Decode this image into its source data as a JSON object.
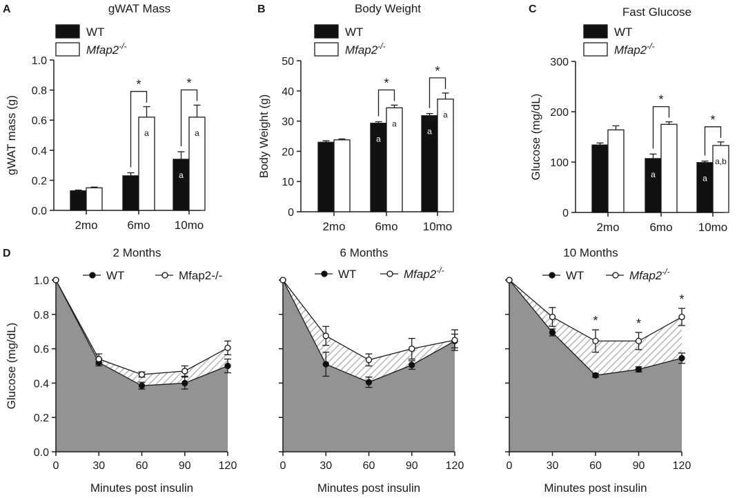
{
  "chart_data": [
    {
      "panel": "A",
      "type": "bar",
      "title": "gWAT Mass",
      "ylabel": "gWAT mass (g)",
      "xlabel": "",
      "ylim": [
        0,
        1.0
      ],
      "yticks": [
        "0.0",
        "0.2",
        "0.4",
        "0.6",
        "0.8",
        "1.0"
      ],
      "categories": [
        "2mo",
        "6mo",
        "10mo"
      ],
      "legend": [
        {
          "label": "WT",
          "style": "normal"
        },
        {
          "label": "Mfap2",
          "sup": "-/-",
          "style": "italic"
        }
      ],
      "series": [
        {
          "name": "WT",
          "values": [
            0.13,
            0.23,
            0.34
          ],
          "errors": [
            0.005,
            0.02,
            0.05
          ],
          "labels": [
            "",
            "",
            "a"
          ]
        },
        {
          "name": "Mfap2-/-",
          "values": [
            0.15,
            0.62,
            0.62
          ],
          "errors": [
            0.005,
            0.07,
            0.08
          ],
          "labels": [
            "",
            "a",
            "a"
          ]
        }
      ],
      "significance": [
        {
          "category": 1,
          "text": "*"
        },
        {
          "category": 2,
          "text": "*"
        }
      ]
    },
    {
      "panel": "B",
      "type": "bar",
      "title": "Body Weight",
      "ylabel": "Body Weight (g)",
      "xlabel": "",
      "ylim": [
        0,
        50
      ],
      "yticks": [
        "0",
        "10",
        "20",
        "30",
        "40",
        "50"
      ],
      "categories": [
        "2mo",
        "6mo",
        "10mo"
      ],
      "legend": [
        {
          "label": "WT",
          "style": "normal"
        },
        {
          "label": "Mfap2",
          "sup": "-/-",
          "style": "italic"
        }
      ],
      "series": [
        {
          "name": "WT",
          "values": [
            23,
            29.3,
            31.8
          ],
          "errors": [
            0.5,
            0.5,
            0.7
          ],
          "labels": [
            "",
            "a",
            "a"
          ]
        },
        {
          "name": "Mfap2-/-",
          "values": [
            23.8,
            34.4,
            37.3
          ],
          "errors": [
            0.3,
            0.9,
            2.0
          ],
          "labels": [
            "",
            "a",
            "a"
          ]
        }
      ],
      "significance": [
        {
          "category": 1,
          "text": "*"
        },
        {
          "category": 2,
          "text": "*"
        }
      ]
    },
    {
      "panel": "C",
      "type": "bar",
      "title": "Fast Glucose",
      "ylabel": "Glucose (mg/dL)",
      "xlabel": "",
      "ylim": [
        0,
        300
      ],
      "yticks": [
        "0",
        "100",
        "200",
        "300"
      ],
      "categories": [
        "2mo",
        "6mo",
        "10mo"
      ],
      "legend": [
        {
          "label": "WT",
          "style": "normal"
        },
        {
          "label": "Mfap2",
          "sup": "-/-",
          "style": "italic"
        }
      ],
      "series": [
        {
          "name": "WT",
          "values": [
            134,
            107,
            99
          ],
          "errors": [
            4,
            9,
            3
          ],
          "labels": [
            "",
            "a",
            "a"
          ]
        },
        {
          "name": "Mfap2-/-",
          "values": [
            164,
            175,
            133
          ],
          "errors": [
            8,
            5,
            7
          ],
          "labels": [
            "",
            "",
            "a,b"
          ]
        }
      ],
      "significance": [
        {
          "category": 1,
          "text": "*"
        },
        {
          "category": 2,
          "text": "*"
        }
      ]
    },
    {
      "panel": "D",
      "type": "line",
      "title": "2 Months",
      "ylabel": "Glucose (mg/dL)",
      "xlabel": "Minutes post insulin",
      "xlim": [
        0,
        120
      ],
      "ylim": [
        0,
        1.0
      ],
      "x": [
        0,
        30,
        60,
        90,
        120
      ],
      "xticks": [
        "0",
        "30",
        "60",
        "90",
        "120"
      ],
      "yticks": [
        "0.0",
        "0.2",
        "0.4",
        "0.6",
        "0.8",
        "1.0"
      ],
      "legend": [
        {
          "label": "WT",
          "style": "normal"
        },
        {
          "label": "Mfap2-/-",
          "style": "normal"
        }
      ],
      "series": [
        {
          "name": "WT",
          "marker": "filled",
          "values": [
            1.0,
            0.52,
            0.385,
            0.4,
            0.5
          ],
          "errors": [
            0,
            0.02,
            0.02,
            0.035,
            0.04
          ]
        },
        {
          "name": "Mfap2-/-",
          "marker": "open",
          "values": [
            1.0,
            0.54,
            0.45,
            0.47,
            0.605
          ],
          "errors": [
            0,
            0.03,
            0.015,
            0.03,
            0.04
          ]
        }
      ],
      "significance": []
    },
    {
      "panel": "",
      "type": "line",
      "title": "6 Months",
      "ylabel": "",
      "xlabel": "Minutes post insulin",
      "xlim": [
        0,
        120
      ],
      "ylim": [
        0,
        1.0
      ],
      "x": [
        0,
        30,
        60,
        90,
        120
      ],
      "xticks": [
        "0",
        "30",
        "60",
        "90",
        "120"
      ],
      "yticks": [],
      "legend": [
        {
          "label": "WT",
          "style": "normal"
        },
        {
          "label": "Mfap2",
          "sup": "-/-",
          "style": "italic"
        }
      ],
      "series": [
        {
          "name": "WT",
          "marker": "filled",
          "values": [
            1.0,
            0.51,
            0.405,
            0.505,
            0.645
          ],
          "errors": [
            0,
            0.07,
            0.03,
            0.025,
            0.04
          ]
        },
        {
          "name": "Mfap2-/-",
          "marker": "open",
          "values": [
            1.0,
            0.675,
            0.535,
            0.6,
            0.65
          ],
          "errors": [
            0,
            0.055,
            0.035,
            0.06,
            0.06
          ]
        }
      ],
      "significance": []
    },
    {
      "panel": "",
      "type": "line",
      "title": "10 Months",
      "ylabel": "",
      "xlabel": "Minutes post insulin",
      "xlim": [
        0,
        120
      ],
      "ylim": [
        0,
        1.0
      ],
      "x": [
        0,
        30,
        60,
        90,
        120
      ],
      "xticks": [
        "0",
        "30",
        "60",
        "90",
        "120"
      ],
      "yticks": [],
      "legend": [
        {
          "label": "WT",
          "style": "normal"
        },
        {
          "label": "Mfap2",
          "sup": "-/-",
          "style": "italic"
        }
      ],
      "series": [
        {
          "name": "WT",
          "marker": "filled",
          "values": [
            1.0,
            0.695,
            0.445,
            0.48,
            0.545
          ],
          "errors": [
            0,
            0.02,
            0.01,
            0.015,
            0.03
          ]
        },
        {
          "name": "Mfap2-/-",
          "marker": "open",
          "values": [
            1.0,
            0.785,
            0.645,
            0.645,
            0.785
          ],
          "errors": [
            0,
            0.055,
            0.065,
            0.05,
            0.05
          ]
        }
      ],
      "significance": [
        {
          "x": 60,
          "text": "*"
        },
        {
          "x": 90,
          "text": "*"
        },
        {
          "x": 120,
          "text": "*"
        }
      ]
    }
  ],
  "colors": {
    "wt_bar": "#111111",
    "ko_bar": "#ffffff",
    "axis": "#1a1a1a",
    "area_fill": "#939393",
    "hatch": "#b4b4b4"
  }
}
